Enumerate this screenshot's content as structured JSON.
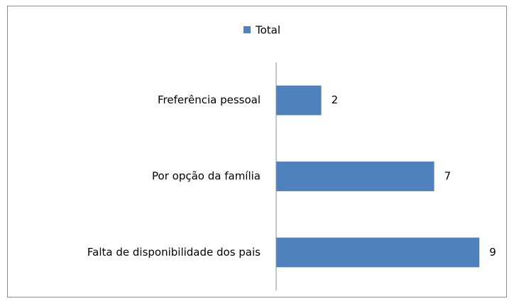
{
  "chart_data": {
    "type": "bar",
    "orientation": "horizontal",
    "categories": [
      "Freferência pessoal",
      "Por opção da família",
      "Falta de disponibilidade dos pais"
    ],
    "series": [
      {
        "name": "Total",
        "color": "#4f81bd",
        "values": [
          2,
          7,
          9
        ]
      }
    ],
    "xlim": [
      0,
      10
    ],
    "legend": "top"
  }
}
